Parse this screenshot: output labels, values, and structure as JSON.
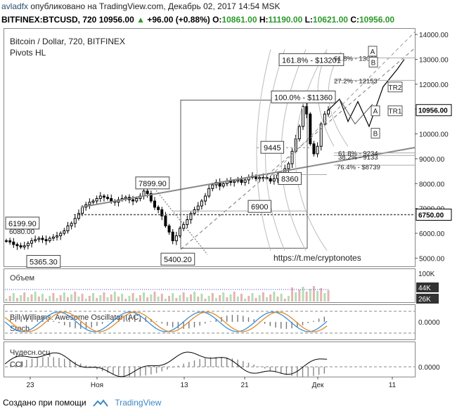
{
  "header": {
    "user": "avladfx",
    "published": "опубликовано на TradingView.com, Декабрь 02, 2017 14:54 MSK",
    "symbol": "BITFINEX:BTCUSD, 720",
    "last": "10956.00",
    "arrow": "▲",
    "change": "+96.00 (+0.88%)",
    "o_label": "O:",
    "o": "10861.00",
    "h_label": "H:",
    "h": "11190.00",
    "l_label": "L:",
    "l": "10621.00",
    "c_label": "C:",
    "c": "10956.00"
  },
  "main": {
    "title": "Bitcoin / Dollar, 720, BITFINEX",
    "indicator": "Pivots HL",
    "link": "https://t.me/cryptonotes"
  },
  "footer": {
    "created": "Создано при помощи",
    "brand": "TradingView"
  },
  "chart_data": {
    "type": "candlestick",
    "title": "Bitcoin / Dollar, 720, BITFINEX",
    "ylim": [
      4700,
      14200
    ],
    "y_ticks": [
      "5000.00",
      "6000.00",
      "7000.00",
      "8000.00",
      "9000.00",
      "10000.00",
      "11000.00",
      "12000.00",
      "13000.00",
      "14000.00"
    ],
    "x_ticks": [
      "23",
      "Ноя",
      "13",
      "21",
      "Дек",
      "11"
    ],
    "price_label": "10956.00",
    "level_label": "6750.00",
    "closes": [
      5700,
      5650,
      5550,
      5500,
      5450,
      5500,
      5600,
      5700,
      5750,
      5800,
      5750,
      5700,
      5800,
      5850,
      5900,
      6000,
      6100,
      6300,
      6400,
      6600,
      6800,
      7050,
      7150,
      7250,
      7300,
      7400,
      7500,
      7450,
      7400,
      7300,
      7250,
      7350,
      7400,
      7450,
      7350,
      7300,
      7400,
      7500,
      7700,
      7600,
      7300,
      7050,
      6950,
      6700,
      6300,
      6050,
      5700,
      5900,
      6200,
      6350,
      6550,
      6800,
      6950,
      7100,
      7300,
      7500,
      7800,
      7950,
      8050,
      7900,
      8000,
      8100,
      8050,
      8100,
      8150,
      8050,
      8150,
      8250,
      8300,
      8200,
      8250,
      8250,
      8200,
      8100,
      8200,
      8350,
      8400,
      8600,
      8800,
      9300,
      9800,
      10300,
      11100,
      10800,
      9600,
      9200,
      9500,
      10400,
      10800,
      10956
    ],
    "annotations": [
      {
        "text": "7899.90",
        "price": 7899.9
      },
      {
        "text": "6199.90",
        "price": 6199.9
      },
      {
        "text": "6080.00",
        "price": 6080
      },
      {
        "text": "5365.30",
        "price": 5365.3
      },
      {
        "text": "5400.20",
        "price": 5400.2
      },
      {
        "text": "6900",
        "price": 6900
      },
      {
        "text": "8360",
        "price": 8360
      },
      {
        "text": "9445",
        "price": 9445
      },
      {
        "text": "100.0% - $11360",
        "price": 11360
      },
      {
        "text": "161.8% - $13201",
        "price": 13201
      }
    ],
    "fib_levels": [
      {
        "text": "61.8% - 13060",
        "price": 13060
      },
      {
        "text": "27.2% - 12153",
        "price": 12153
      },
      {
        "text": "61.8% - 9234",
        "price": 9234
      },
      {
        "text": "38.2% - 9133",
        "price": 9133
      },
      {
        "text": "76.4% - $8739",
        "price": 8739
      }
    ],
    "wave_labels": [
      "A",
      "B",
      "TR2",
      "A",
      "TR1",
      "B"
    ],
    "volume": {
      "title": "Объем",
      "ticks": [
        "100K",
        "44K",
        "26K"
      ]
    },
    "oscillator1": {
      "title": "Bill Williams. Awesome Oscillator (AC)",
      "subtitle": "Stoch",
      "ticks": [
        "0.0000"
      ]
    },
    "oscillator2": {
      "title": "Чудесн.осц",
      "subtitle": "CCI",
      "ticks": [
        "0.0000"
      ]
    }
  }
}
